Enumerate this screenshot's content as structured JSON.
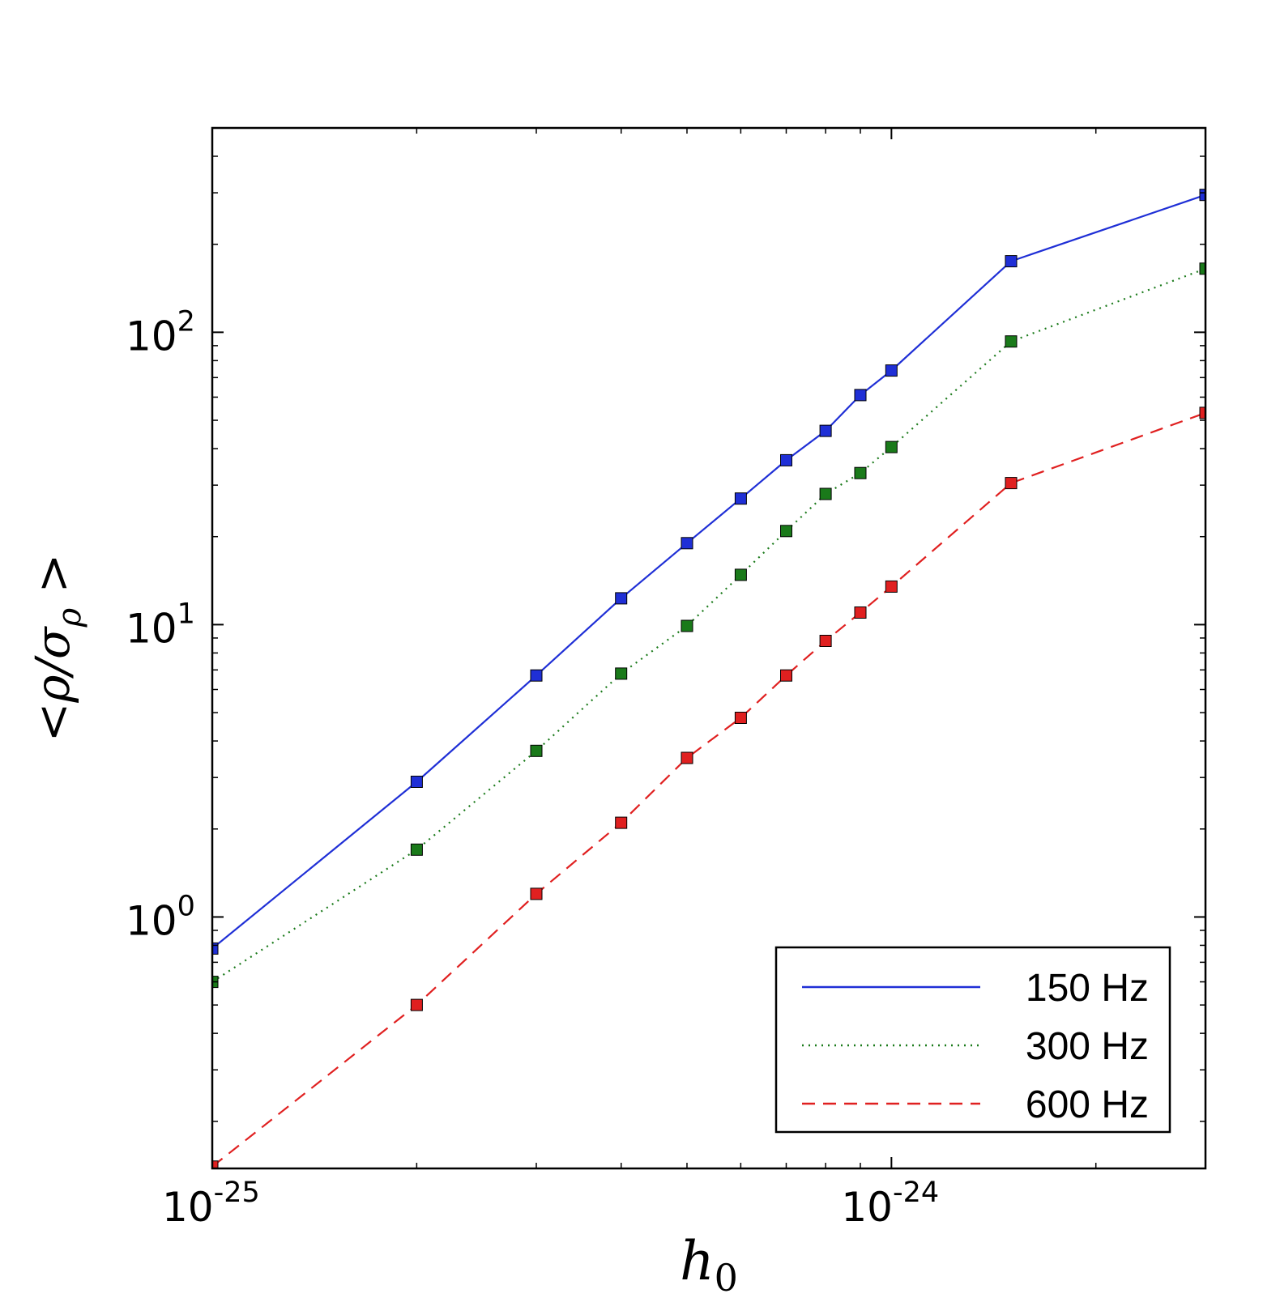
{
  "chart_data": {
    "type": "line",
    "xscale": "log",
    "yscale": "log",
    "xlim": [
      1e-25,
      2.9e-24
    ],
    "ylim": [
      0.138,
      500
    ],
    "xlabel": "h_0",
    "ylabel": "<ρ/σ_ρ >",
    "x_ticks": [
      {
        "base": "10",
        "exp": "-25",
        "value": 1e-25
      },
      {
        "base": "10",
        "exp": "-24",
        "value": 1e-24
      }
    ],
    "y_ticks": [
      {
        "base": "10",
        "exp": "0",
        "value": 1
      },
      {
        "base": "10",
        "exp": "1",
        "value": 10
      },
      {
        "base": "10",
        "exp": "2",
        "value": 100
      }
    ],
    "grid": false,
    "legend_position": "lower-right",
    "series": [
      {
        "name": "150 Hz",
        "color": "#1f2fd6",
        "line_style": "solid",
        "marker": "square",
        "points": [
          [
            1e-25,
            0.78
          ],
          [
            2e-25,
            2.9
          ],
          [
            3e-25,
            6.7
          ],
          [
            4e-25,
            12.3
          ],
          [
            5e-25,
            19
          ],
          [
            6e-25,
            27
          ],
          [
            7e-25,
            36.5
          ],
          [
            8e-25,
            46
          ],
          [
            9e-25,
            61
          ],
          [
            1e-24,
            74
          ],
          [
            1.5e-24,
            175
          ],
          [
            2.9e-24,
            295
          ]
        ]
      },
      {
        "name": "300 Hz",
        "color": "#1a7a1a",
        "line_style": "dotted",
        "marker": "square",
        "points": [
          [
            1e-25,
            0.6
          ],
          [
            2e-25,
            1.7
          ],
          [
            3e-25,
            3.7
          ],
          [
            4e-25,
            6.8
          ],
          [
            5e-25,
            9.9
          ],
          [
            6e-25,
            14.8
          ],
          [
            7e-25,
            20.9
          ],
          [
            8e-25,
            28
          ],
          [
            9e-25,
            33
          ],
          [
            1e-24,
            40.5
          ],
          [
            1.5e-24,
            93
          ],
          [
            2.9e-24,
            165
          ]
        ]
      },
      {
        "name": "600 Hz",
        "color": "#e02020",
        "line_style": "dashed",
        "marker": "square",
        "points": [
          [
            1e-25,
            0.14
          ],
          [
            2e-25,
            0.5
          ],
          [
            3e-25,
            1.2
          ],
          [
            4e-25,
            2.1
          ],
          [
            5e-25,
            3.5
          ],
          [
            6e-25,
            4.8
          ],
          [
            7e-25,
            6.7
          ],
          [
            8e-25,
            8.8
          ],
          [
            9e-25,
            11
          ],
          [
            1e-24,
            13.5
          ],
          [
            1.5e-24,
            30.5
          ],
          [
            2.9e-24,
            53
          ]
        ]
      }
    ]
  }
}
